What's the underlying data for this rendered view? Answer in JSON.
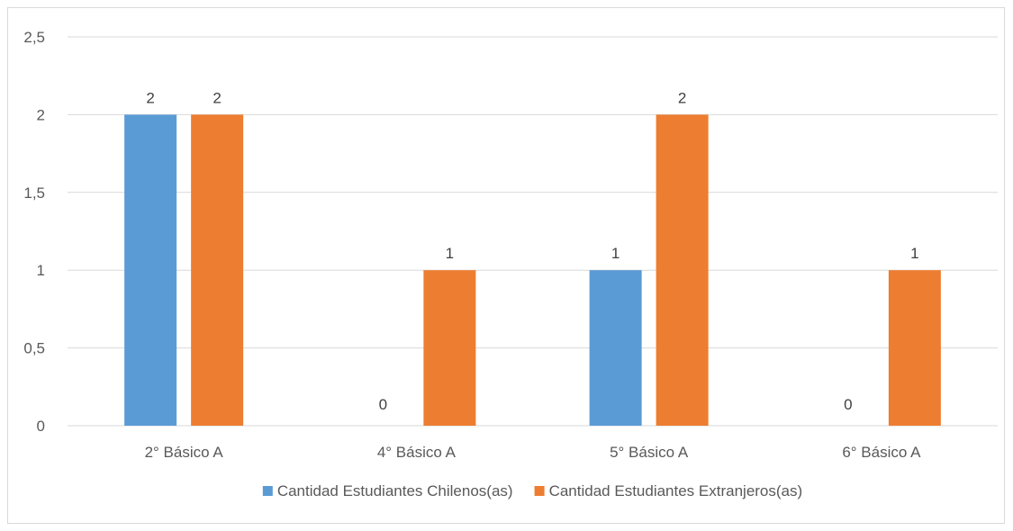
{
  "chart_data": {
    "type": "bar",
    "categories": [
      "2° Básico A",
      "4° Básico A",
      "5° Básico A",
      "6° Básico A"
    ],
    "series": [
      {
        "name": "Cantidad Estudiantes Chilenos(as)",
        "values": [
          2,
          0,
          1,
          0
        ],
        "color": "#5B9BD5"
      },
      {
        "name": "Cantidad Estudiantes Extranjeros(as)",
        "values": [
          2,
          1,
          2,
          1
        ],
        "color": "#ED7D31"
      }
    ],
    "ylim": [
      0,
      2.5
    ],
    "yticks": [
      0,
      0.5,
      1,
      1.5,
      2,
      2.5
    ],
    "ytick_labels": [
      "0",
      "0,5",
      "1",
      "1,5",
      "2",
      "2,5"
    ],
    "grid": true,
    "legend": "bottom",
    "data_labels": true
  }
}
